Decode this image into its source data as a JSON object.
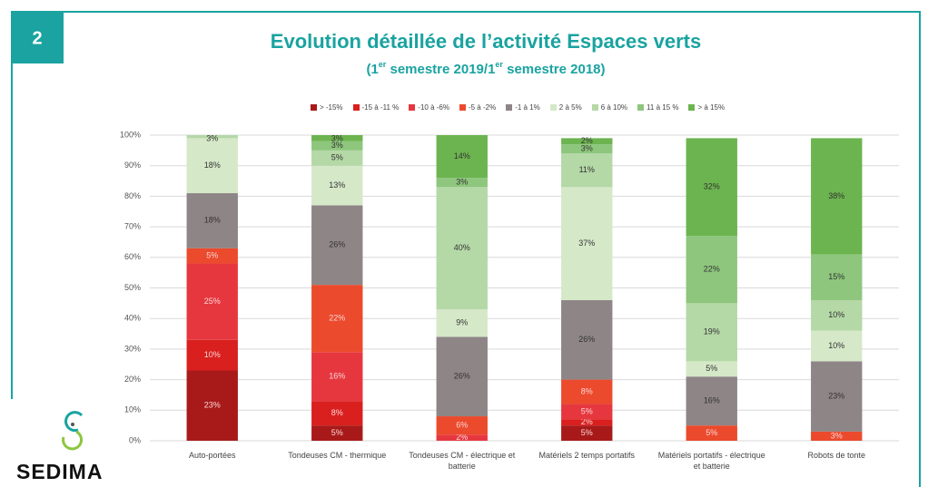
{
  "figure_number": "2",
  "brand": "SEDIMA",
  "chart_data": {
    "type": "stacked_bar",
    "title": "Evolution détaillée de l’activité Espaces verts",
    "subtitle": [
      "(1",
      "er",
      " semestre 2019/1",
      "er",
      " semestre 2018)"
    ],
    "categories": [
      "Auto-portées",
      "Tondeuses CM - thermique",
      "Tondeuses CM - électrique et batterie",
      "Matériels 2 temps portatifs",
      "Matériels portatifs - électrique et batterie",
      "Robots de tonte"
    ],
    "ylim": [
      0,
      100
    ],
    "yticks": [
      {
        "value": 0,
        "label": "0%"
      },
      {
        "value": 10,
        "label": "10%"
      },
      {
        "value": 20,
        "label": "20%"
      },
      {
        "value": 30,
        "label": "30%"
      },
      {
        "value": 40,
        "label": "40%"
      },
      {
        "value": 50,
        "label": "50%"
      },
      {
        "value": 60,
        "label": "60%"
      },
      {
        "value": 70,
        "label": "70%"
      },
      {
        "value": 80,
        "label": "80%"
      },
      {
        "value": 90,
        "label": "90%"
      },
      {
        "value": 100,
        "label": "100%"
      }
    ],
    "grid": true,
    "legend": "top",
    "series": [
      {
        "name": "> -15%",
        "color": "#a81a1a",
        "values": [
          23,
          5,
          0,
          5,
          0,
          0
        ],
        "value_labels": [
          "23%",
          "5%",
          null,
          "5%",
          null,
          null
        ]
      },
      {
        "name": "-15 à -11 %",
        "color": "#d9201e",
        "values": [
          10,
          8,
          0,
          2,
          0,
          0
        ],
        "value_labels": [
          "10%",
          "8%",
          null,
          "2%",
          null,
          null
        ]
      },
      {
        "name": "-10 à -6%",
        "color": "#e6373f",
        "values": [
          25,
          16,
          2,
          5,
          0,
          0
        ],
        "value_labels": [
          "25%",
          "16%",
          "2%",
          "5%",
          null,
          null
        ]
      },
      {
        "name": "-5 à -2%",
        "color": "#ec4a2d",
        "values": [
          5,
          22,
          6,
          8,
          5,
          3
        ],
        "value_labels": [
          "5%",
          "22%",
          "6%",
          "8%",
          "5%",
          "3%"
        ]
      },
      {
        "name": "-1 à 1%",
        "color": "#8e8586",
        "values": [
          18,
          26,
          26,
          26,
          16,
          23
        ],
        "value_labels": [
          "18%",
          "26%",
          "26%",
          "26%",
          "16%",
          "23%"
        ]
      },
      {
        "name": "2 à 5%",
        "color": "#d5e8c8",
        "values": [
          18,
          13,
          9,
          37,
          5,
          10
        ],
        "value_labels": [
          "18%",
          "13%",
          "9%",
          "37%",
          "5%",
          "10%"
        ]
      },
      {
        "name": "6 à 10%",
        "color": "#b4d8a6",
        "values": [
          3,
          5,
          40,
          11,
          19,
          10
        ],
        "value_labels": [
          "3%",
          "5%",
          "40%",
          "11%",
          "19%",
          "10%"
        ]
      },
      {
        "name": "11 à 15 %",
        "color": "#8dc67c",
        "values": [
          0,
          3,
          3,
          3,
          22,
          15
        ],
        "value_labels": [
          null,
          "3%",
          "3%",
          "3%",
          "22%",
          "15%"
        ]
      },
      {
        "name": "> à 15%",
        "color": "#6cb44f",
        "values": [
          0,
          3,
          14,
          2,
          32,
          38
        ],
        "value_labels": [
          null,
          "3%",
          "14%",
          "2%",
          "32%",
          "38%"
        ]
      }
    ]
  }
}
